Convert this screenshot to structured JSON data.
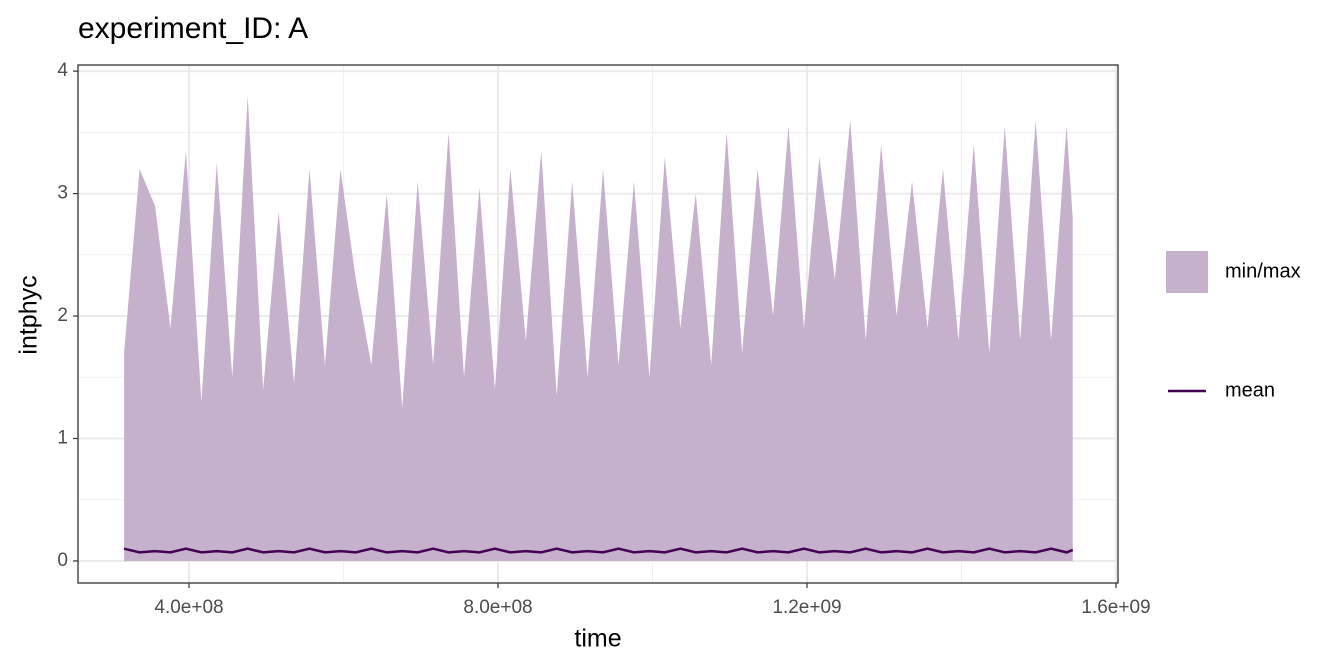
{
  "chart_data": {
    "type": "ribbon",
    "title": "experiment_ID: A",
    "x_label": "time",
    "y_label": "intphyc",
    "x": [
      316000000,
      336000000,
      356000000,
      376000000,
      396000000,
      416000000,
      436000000,
      456000000,
      476000000,
      496000000,
      516000000,
      536000000,
      556000000,
      576000000,
      596000000,
      616000000,
      636000000,
      656000000,
      676000000,
      696000000,
      716000000,
      736000000,
      756000000,
      776000000,
      796000000,
      816000000,
      836000000,
      856000000,
      876000000,
      896000000,
      916000000,
      936000000,
      956000000,
      976000000,
      996000000,
      1016000000,
      1036000000,
      1056000000,
      1076000000,
      1096000000,
      1116000000,
      1136000000,
      1156000000,
      1176000000,
      1196000000,
      1216000000,
      1236000000,
      1256000000,
      1276000000,
      1296000000,
      1316000000,
      1336000000,
      1356000000,
      1376000000,
      1396000000,
      1416000000,
      1436000000,
      1456000000,
      1476000000,
      1496000000,
      1516000000,
      1536000000,
      1544000000
    ],
    "series": [
      {
        "name": "min/max",
        "color": "#c6b1cc",
        "ymin": [
          0,
          0,
          0,
          0,
          0,
          0,
          0,
          0,
          0,
          0,
          0,
          0,
          0,
          0,
          0,
          0,
          0,
          0,
          0,
          0,
          0,
          0,
          0,
          0,
          0,
          0,
          0,
          0,
          0,
          0,
          0,
          0,
          0,
          0,
          0,
          0,
          0,
          0,
          0,
          0,
          0,
          0,
          0,
          0,
          0,
          0,
          0,
          0,
          0,
          0,
          0,
          0,
          0,
          0,
          0,
          0,
          0,
          0,
          0,
          0,
          0,
          0,
          0
        ],
        "ymax": [
          1.7,
          3.2,
          2.9,
          1.9,
          3.35,
          1.3,
          3.25,
          1.5,
          3.8,
          1.4,
          2.85,
          1.45,
          3.2,
          1.6,
          3.2,
          2.3,
          1.6,
          3.0,
          1.25,
          3.1,
          1.6,
          3.5,
          1.5,
          3.05,
          1.4,
          3.2,
          1.8,
          3.35,
          1.35,
          3.1,
          1.5,
          3.2,
          1.6,
          3.1,
          1.5,
          3.3,
          1.9,
          3.0,
          1.6,
          3.5,
          1.7,
          3.2,
          2.0,
          3.55,
          1.9,
          3.3,
          2.3,
          3.6,
          1.8,
          3.4,
          2.0,
          3.1,
          1.9,
          3.2,
          1.8,
          3.4,
          1.7,
          3.55,
          1.8,
          3.6,
          1.8,
          3.55,
          2.8
        ]
      },
      {
        "name": "mean",
        "color": "#440154",
        "values": [
          0.1,
          0.07,
          0.08,
          0.07,
          0.1,
          0.07,
          0.08,
          0.07,
          0.1,
          0.07,
          0.08,
          0.07,
          0.1,
          0.07,
          0.08,
          0.07,
          0.1,
          0.07,
          0.08,
          0.07,
          0.1,
          0.07,
          0.08,
          0.07,
          0.1,
          0.07,
          0.08,
          0.07,
          0.1,
          0.07,
          0.08,
          0.07,
          0.1,
          0.07,
          0.08,
          0.07,
          0.1,
          0.07,
          0.08,
          0.07,
          0.1,
          0.07,
          0.08,
          0.07,
          0.1,
          0.07,
          0.08,
          0.07,
          0.1,
          0.07,
          0.08,
          0.07,
          0.1,
          0.07,
          0.08,
          0.07,
          0.1,
          0.07,
          0.08,
          0.07,
          0.1,
          0.07,
          0.09
        ]
      }
    ],
    "xlim": [
      256300000,
      1602600000
    ],
    "ylim": [
      -0.18,
      4.05
    ],
    "xticks": [
      {
        "value": 400000000,
        "label": "4.0e+08"
      },
      {
        "value": 800000000,
        "label": "8.0e+08"
      },
      {
        "value": 1200000000,
        "label": "1.2e+09"
      },
      {
        "value": 1600000000,
        "label": "1.6e+09"
      }
    ],
    "yticks": [
      0,
      1,
      2,
      3,
      4
    ],
    "minor_xticks": [
      600000000,
      1000000000,
      1400000000
    ],
    "minor_yticks": [
      0.5,
      1.5,
      2.5,
      3.5
    ],
    "grid": true,
    "legend": "right"
  }
}
